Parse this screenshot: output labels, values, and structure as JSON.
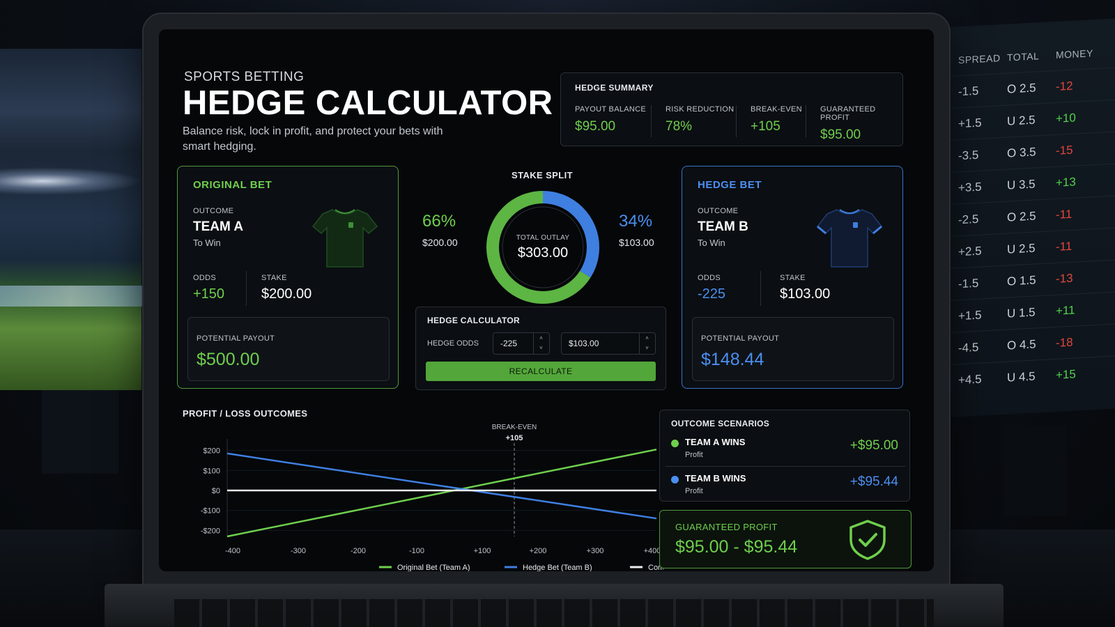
{
  "header": {
    "eyebrow": "SPORTS BETTING",
    "title": "HEDGE CALCULATOR",
    "subtitle": "Balance risk, lock in profit, and protect your bets with smart hedging."
  },
  "summary": {
    "title": "HEDGE SUMMARY",
    "metrics": [
      {
        "label": "PAYOUT BALANCE",
        "value": "$95.00"
      },
      {
        "label": "RISK REDUCTION",
        "value": "78%"
      },
      {
        "label": "BREAK-EVEN",
        "value": "+105"
      },
      {
        "label": "GUARANTEED PROFIT",
        "value": "$95.00"
      }
    ]
  },
  "original_bet": {
    "title": "ORIGINAL BET",
    "outcome_label": "OUTCOME",
    "team": "TEAM A",
    "market": "To Win",
    "odds_label": "ODDS",
    "odds": "+150",
    "stake_label": "STAKE",
    "stake": "$200.00",
    "payout_label": "POTENTIAL PAYOUT",
    "payout": "$500.00",
    "jersey_color": "#16301a",
    "accent": "#6fcf4d"
  },
  "hedge_bet": {
    "title": "HEDGE BET",
    "outcome_label": "OUTCOME",
    "team": "TEAM B",
    "market": "To Win",
    "odds_label": "ODDS",
    "odds": "-225",
    "stake_label": "STAKE",
    "stake": "$103.00",
    "payout_label": "POTENTIAL PAYOUT",
    "payout": "$148.44",
    "jersey_color": "#111a2e",
    "accent": "#4b8ff0"
  },
  "stake_split": {
    "title": "STAKE SPLIT",
    "left_pct": "66%",
    "left_amount": "$200.00",
    "right_pct": "34%",
    "right_amount": "$103.00",
    "center_label": "TOTAL OUTLAY",
    "center_value": "$303.00",
    "original_fraction": 0.66,
    "hedge_fraction": 0.34
  },
  "calculator": {
    "title": "HEDGE CALCULATOR",
    "odds_label": "HEDGE ODDS",
    "odds_value": "-225",
    "stake_value": "$103.00",
    "button": "RECALCULATE",
    "spin_up": "˄",
    "spin_down": "˅"
  },
  "pl_chart": {
    "title": "PROFIT / LOSS OUTCOMES",
    "breakeven_label": "BREAK-EVEN",
    "breakeven_value": "+105"
  },
  "chart_data": {
    "type": "line",
    "title": "PROFIT / LOSS OUTCOMES",
    "x_ticks": [
      "-400",
      "-300",
      "-200",
      "-100",
      "+100",
      "+200",
      "+300",
      "+400"
    ],
    "y_ticks": [
      "$200",
      "$100",
      "$0",
      "-$100",
      "-$200"
    ],
    "ylim": [
      -230,
      230
    ],
    "annotation": {
      "label": "BREAK-EVEN",
      "value": "+105",
      "x": 105
    },
    "series": [
      {
        "name": "Original Bet (Team A)",
        "color": "#6fcf4d",
        "x": [
          -400,
          400
        ],
        "y": [
          -230,
          205
        ]
      },
      {
        "name": "Hedge Bet (Team B)",
        "color": "#3f7fe0",
        "x": [
          -400,
          400
        ],
        "y": [
          185,
          -140
        ]
      },
      {
        "name": "Combined P/L (Hedged)",
        "color": "#e8ecef",
        "x": [
          -400,
          400
        ],
        "y": [
          0,
          0
        ]
      }
    ],
    "grid": true,
    "legend": "bottom"
  },
  "scenarios": {
    "title": "OUTCOME SCENARIOS",
    "items": [
      {
        "name": "TEAM A WINS",
        "sub": "Profit",
        "value": "+$95.00",
        "color": "#6fcf4d"
      },
      {
        "name": "TEAM B WINS",
        "sub": "Profit",
        "value": "+$95.44",
        "color": "#4b8ff0"
      }
    ]
  },
  "guaranteed": {
    "label": "GUARANTEED PROFIT",
    "value": "$95.00 - $95.44"
  },
  "odds_board": {
    "headers": [
      "SPREAD",
      "TOTAL",
      "MONEY"
    ],
    "rows": [
      [
        "-1.5",
        "O 2.5",
        "-12"
      ],
      [
        "+1.5",
        "U 2.5",
        "+10"
      ],
      [
        "-3.5",
        "O 3.5",
        "-15"
      ],
      [
        "+3.5",
        "U 3.5",
        "+13"
      ],
      [
        "-2.5",
        "O 2.5",
        "-11"
      ],
      [
        "+2.5",
        "U 2.5",
        "-11"
      ],
      [
        "-1.5",
        "O 1.5",
        "-13"
      ],
      [
        "+1.5",
        "U 1.5",
        "+11"
      ],
      [
        "-4.5",
        "O 4.5",
        "-18"
      ],
      [
        "+4.5",
        "U 4.5",
        "+15"
      ]
    ]
  }
}
